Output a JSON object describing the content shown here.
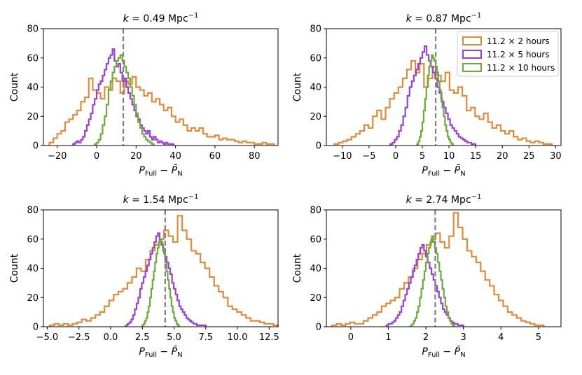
{
  "chart_data": [
    {
      "type": "histogram",
      "title_prefix": "k = 0.49 Mpc",
      "title_sup": "−1",
      "xlabel": "P_Full − P̄_N",
      "ylabel": "Count",
      "xlim": [
        -27,
        92
      ],
      "ylim": [
        0,
        80
      ],
      "xticks": [
        -20,
        0,
        20,
        40,
        60,
        80
      ],
      "xtick_labels": [
        "−20",
        "0",
        "20",
        "40",
        "60",
        "80"
      ],
      "yticks": [
        0,
        20,
        40,
        60,
        80
      ],
      "vline": 13.5,
      "series": [
        {
          "name": "11.2 × 2 hours",
          "color": "#e08a3c",
          "x0": -24,
          "bin": 2,
          "values": [
            2,
            5,
            8,
            10,
            16,
            18,
            21,
            24,
            30,
            33,
            46,
            38,
            36,
            32,
            40,
            38,
            46,
            44,
            36,
            44,
            42,
            47,
            40,
            38,
            34,
            36,
            30,
            32,
            28,
            24,
            26,
            20,
            16,
            18,
            14,
            10,
            12,
            10,
            12,
            8,
            6,
            6,
            7,
            4,
            5,
            4,
            4,
            3,
            2,
            3,
            2,
            2,
            1,
            1,
            2,
            1,
            1
          ]
        },
        {
          "name": "11.2 × 5 hours",
          "color": "#9a3fd6",
          "x0": -12,
          "bin": 1,
          "values": [
            1,
            2,
            3,
            2,
            4,
            6,
            10,
            14,
            18,
            22,
            28,
            32,
            38,
            42,
            44,
            48,
            52,
            56,
            60,
            62,
            66,
            58,
            54,
            56,
            50,
            44,
            46,
            40,
            36,
            32,
            28,
            24,
            20,
            18,
            14,
            12,
            10,
            8,
            10,
            6,
            4,
            6,
            4,
            2,
            3,
            2,
            1,
            2,
            1,
            1,
            1
          ]
        },
        {
          "name": "11.2 × 10 hours",
          "color": "#6aab3a",
          "x0": -1,
          "bin": 1,
          "values": [
            1,
            2,
            4,
            8,
            14,
            20,
            28,
            38,
            44,
            50,
            54,
            58,
            60,
            62,
            58,
            54,
            50,
            46,
            40,
            34,
            28,
            22,
            16,
            12,
            8,
            6,
            4,
            3,
            2,
            1
          ]
        }
      ]
    },
    {
      "type": "histogram",
      "title_prefix": "k = 0.87 Mpc",
      "title_sup": "−1",
      "xlabel": "P_Full − P̄_N",
      "ylabel": "Count",
      "xlim": [
        -13,
        31
      ],
      "ylim": [
        0,
        80
      ],
      "xticks": [
        -10,
        -5,
        0,
        5,
        10,
        15,
        20,
        25,
        30
      ],
      "xtick_labels": [
        "−10",
        "−5",
        "0",
        "5",
        "10",
        "15",
        "20",
        "25",
        "30"
      ],
      "yticks": [
        0,
        20,
        40,
        60,
        80
      ],
      "vline": 7.5,
      "legend": {
        "position": "top-right"
      },
      "series": [
        {
          "name": "11.2 × 2 hours",
          "color": "#e08a3c",
          "x0": -11.5,
          "bin": 0.8,
          "values": [
            1,
            2,
            3,
            4,
            6,
            8,
            10,
            14,
            12,
            20,
            24,
            18,
            26,
            32,
            36,
            40,
            46,
            52,
            58,
            50,
            56,
            40,
            46,
            54,
            48,
            44,
            50,
            38,
            36,
            40,
            34,
            24,
            26,
            20,
            18,
            22,
            16,
            12,
            14,
            10,
            8,
            10,
            6,
            4,
            5,
            3,
            2,
            3,
            2,
            1,
            1
          ]
        },
        {
          "name": "11.2 × 5 hours",
          "color": "#9a3fd6",
          "x0": -1,
          "bin": 0.4,
          "values": [
            1,
            2,
            4,
            6,
            10,
            14,
            20,
            26,
            34,
            40,
            44,
            48,
            52,
            56,
            60,
            64,
            68,
            62,
            58,
            54,
            50,
            46,
            40,
            36,
            30,
            26,
            22,
            18,
            14,
            12,
            10,
            8,
            6,
            5,
            4,
            3,
            2,
            2,
            1,
            1
          ]
        },
        {
          "name": "11.2 × 10 hours",
          "color": "#6aab3a",
          "x0": 4,
          "bin": 0.25,
          "values": [
            1,
            3,
            6,
            10,
            16,
            24,
            32,
            40,
            48,
            54,
            58,
            62,
            60,
            58,
            54,
            50,
            44,
            38,
            32,
            26,
            20,
            14,
            10,
            6,
            4,
            2,
            1
          ]
        }
      ]
    },
    {
      "type": "histogram",
      "title_prefix": "k = 1.54 Mpc",
      "title_sup": "−1",
      "xlabel": "P_Full − P̄_N",
      "ylabel": "Count",
      "xlim": [
        -5.3,
        13.2
      ],
      "ylim": [
        0,
        80
      ],
      "xticks": [
        -5,
        -2.5,
        0,
        2.5,
        5,
        7.5,
        10,
        12.5
      ],
      "xtick_labels": [
        "−5.0",
        "−2.5",
        "0.0",
        "2.5",
        "5.0",
        "7.5",
        "10.0",
        "12.5"
      ],
      "yticks": [
        0,
        20,
        40,
        60,
        80
      ],
      "vline": 4.3,
      "series": [
        {
          "name": "11.2 × 2 hours",
          "color": "#e08a3c",
          "x0": -4.8,
          "bin": 0.36,
          "values": [
            1,
            2,
            1,
            2,
            1,
            2,
            3,
            5,
            4,
            6,
            8,
            10,
            14,
            18,
            22,
            24,
            26,
            30,
            34,
            40,
            38,
            46,
            52,
            56,
            60,
            66,
            62,
            58,
            76,
            66,
            60,
            52,
            50,
            44,
            40,
            34,
            28,
            24,
            20,
            14,
            12,
            10,
            8,
            6,
            4,
            4,
            3,
            2,
            2,
            1
          ]
        },
        {
          "name": "11.2 × 5 hours",
          "color": "#9a3fd6",
          "x0": 1.2,
          "bin": 0.14,
          "values": [
            1,
            2,
            3,
            5,
            8,
            12,
            16,
            20,
            26,
            30,
            34,
            38,
            42,
            46,
            50,
            54,
            58,
            62,
            64,
            60,
            56,
            52,
            48,
            44,
            40,
            36,
            30,
            26,
            22,
            18,
            14,
            12,
            10,
            8,
            6,
            5,
            4,
            3,
            2,
            2,
            1,
            1,
            1,
            1,
            1
          ]
        },
        {
          "name": "11.2 × 10 hours",
          "color": "#6aab3a",
          "x0": 2.5,
          "bin": 0.1,
          "values": [
            1,
            2,
            4,
            6,
            10,
            14,
            20,
            26,
            32,
            38,
            44,
            50,
            54,
            58,
            60,
            58,
            54,
            50,
            44,
            38,
            32,
            26,
            20,
            14,
            10,
            6,
            4,
            2,
            1
          ]
        }
      ]
    },
    {
      "type": "histogram",
      "title_prefix": "k = 2.74 Mpc",
      "title_sup": "−1",
      "xlabel": "P_Full − P̄_N",
      "ylabel": "Count",
      "xlim": [
        -0.65,
        5.6
      ],
      "ylim": [
        0,
        80
      ],
      "xticks": [
        0,
        1,
        2,
        3,
        4,
        5
      ],
      "xtick_labels": [
        "0",
        "1",
        "2",
        "3",
        "4",
        "5"
      ],
      "yticks": [
        0,
        20,
        40,
        60,
        80
      ],
      "vline": 2.25,
      "series": [
        {
          "name": "11.2 × 2 hours",
          "color": "#e08a3c",
          "x0": -0.5,
          "bin": 0.12,
          "values": [
            1,
            2,
            1,
            2,
            3,
            2,
            2,
            4,
            6,
            8,
            10,
            14,
            16,
            18,
            20,
            26,
            30,
            34,
            40,
            46,
            50,
            56,
            60,
            64,
            58,
            54,
            62,
            78,
            68,
            60,
            52,
            48,
            44,
            38,
            32,
            28,
            22,
            18,
            14,
            10,
            8,
            6,
            4,
            3,
            2,
            1,
            1
          ]
        },
        {
          "name": "11.2 × 5 hours",
          "color": "#9a3fd6",
          "x0": 0.95,
          "bin": 0.05,
          "values": [
            1,
            2,
            2,
            3,
            4,
            6,
            8,
            10,
            14,
            18,
            22,
            26,
            30,
            34,
            38,
            42,
            46,
            50,
            54,
            56,
            52,
            48,
            44,
            40,
            36,
            32,
            28,
            24,
            20,
            16,
            12,
            10,
            8,
            6,
            4,
            3,
            2,
            2,
            1,
            1,
            1
          ]
        },
        {
          "name": "11.2 × 10 hours",
          "color": "#6aab3a",
          "x0": 1.6,
          "bin": 0.04,
          "values": [
            1,
            2,
            4,
            6,
            10,
            14,
            20,
            26,
            32,
            38,
            44,
            50,
            54,
            58,
            62,
            58,
            54,
            50,
            44,
            38,
            32,
            26,
            20,
            14,
            10,
            6,
            4,
            2,
            1
          ]
        }
      ]
    }
  ]
}
